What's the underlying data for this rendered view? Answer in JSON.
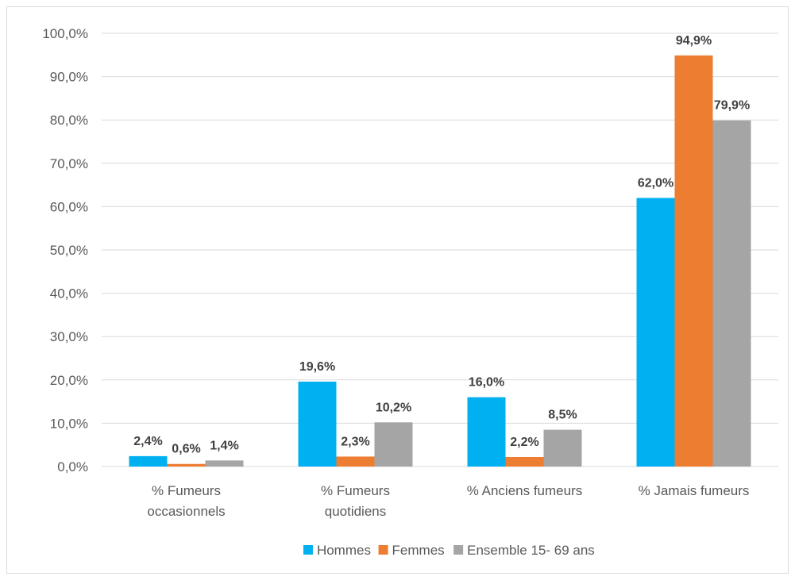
{
  "chart_data": {
    "type": "bar",
    "title": "",
    "xlabel": "",
    "ylabel": "",
    "ylim": [
      0,
      100
    ],
    "y_ticks": [
      "0,0%",
      "10,0%",
      "20,0%",
      "30,0%",
      "40,0%",
      "50,0%",
      "60,0%",
      "70,0%",
      "80,0%",
      "90,0%",
      "100,0%"
    ],
    "categories": [
      [
        "% Fumeurs",
        "occasionnels"
      ],
      [
        "% Fumeurs",
        "quotidiens"
      ],
      [
        "% Anciens fumeurs"
      ],
      [
        "% Jamais fumeurs"
      ]
    ],
    "series": [
      {
        "name": "Hommes",
        "color": "#00b0f0",
        "values": [
          2.4,
          19.6,
          16.0,
          62.0
        ],
        "labels": [
          "2,4%",
          "19,6%",
          "16,0%",
          "62,0%"
        ]
      },
      {
        "name": "Femmes",
        "color": "#ed7d31",
        "values": [
          0.6,
          2.3,
          2.2,
          94.9
        ],
        "labels": [
          "0,6%",
          "2,3%",
          "2,2%",
          "94,9%"
        ]
      },
      {
        "name": "Ensemble 15- 69 ans",
        "color": "#a5a5a5",
        "values": [
          1.4,
          10.2,
          8.5,
          79.9
        ],
        "labels": [
          "1,4%",
          "10,2%",
          "8,5%",
          "79,9%"
        ]
      }
    ],
    "grid": true,
    "legend_position": "bottom"
  }
}
